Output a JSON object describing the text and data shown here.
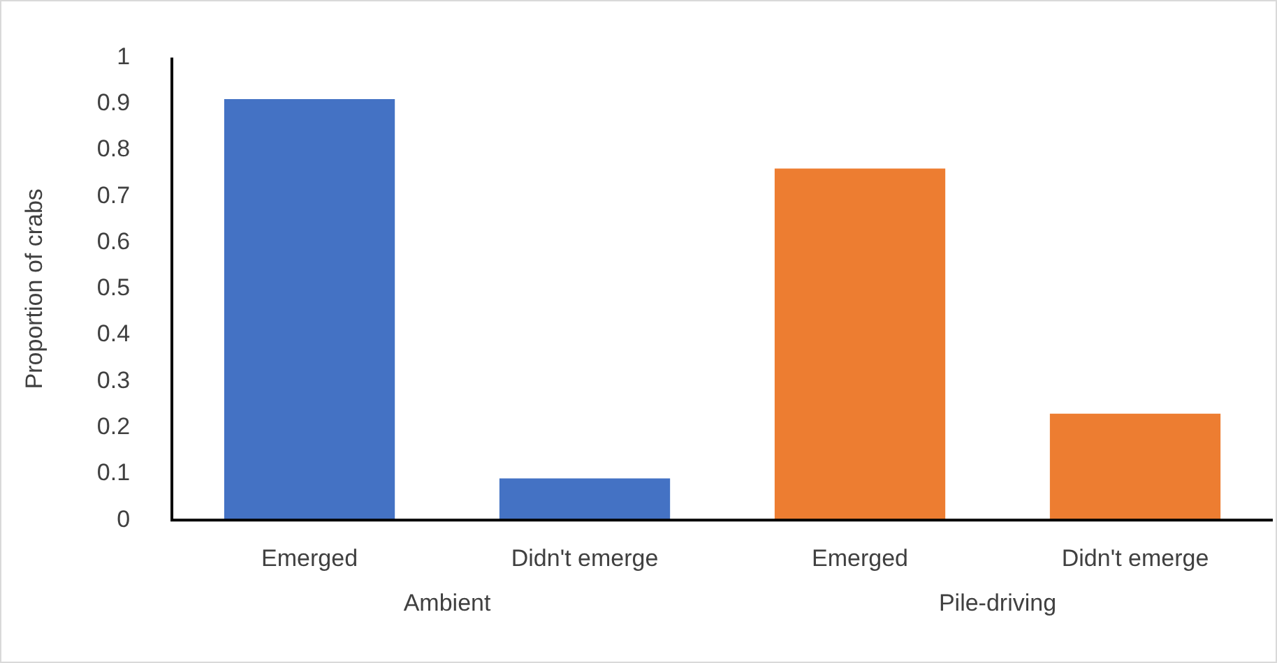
{
  "chart_data": {
    "type": "bar",
    "ylabel": "Proportion of crabs",
    "categories": [
      "Emerged",
      "Didn't emerge",
      "Emerged",
      "Didn't emerge"
    ],
    "series": [
      {
        "name": "Ambient",
        "color": "#4472c4",
        "values": [
          0.91,
          0.09,
          null,
          null
        ]
      },
      {
        "name": "Pile-driving",
        "color": "#ed7d31",
        "values": [
          null,
          null,
          0.76,
          0.23
        ]
      }
    ],
    "ylim": [
      0,
      1
    ],
    "yticks": [
      0,
      0.1,
      0.2,
      0.3,
      0.4,
      0.5,
      0.6,
      0.7,
      0.8,
      0.9,
      1
    ],
    "grid": false,
    "legend": false
  }
}
